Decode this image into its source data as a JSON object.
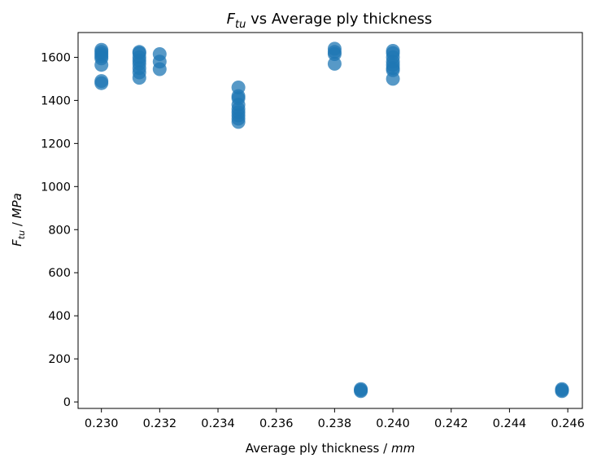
{
  "chart_data": {
    "type": "scatter",
    "title": {
      "var": "F",
      "sub": "tu",
      "rest": " vs Average ply thickness"
    },
    "xlabel": {
      "text": "Average ply thickness / ",
      "unit": "mm"
    },
    "ylabel": {
      "var": "F",
      "sub": "tu",
      "rest": " / ",
      "unit": "MPa"
    },
    "xlim": [
      0.2292,
      0.2465
    ],
    "ylim": [
      -30,
      1715
    ],
    "xticks": [
      0.23,
      0.232,
      0.234,
      0.236,
      0.238,
      0.24,
      0.242,
      0.244,
      0.246
    ],
    "xtick_labels": [
      "0.230",
      "0.232",
      "0.234",
      "0.236",
      "0.238",
      "0.240",
      "0.242",
      "0.244",
      "0.246"
    ],
    "yticks": [
      0,
      200,
      400,
      600,
      800,
      1000,
      1200,
      1400,
      1600
    ],
    "ytick_labels": [
      "0",
      "200",
      "400",
      "600",
      "800",
      "1000",
      "1200",
      "1400",
      "1600"
    ],
    "grid": false,
    "color": "#1f77b4",
    "points": [
      {
        "x": 0.23,
        "y": 1635
      },
      {
        "x": 0.23,
        "y": 1625
      },
      {
        "x": 0.23,
        "y": 1615
      },
      {
        "x": 0.23,
        "y": 1605
      },
      {
        "x": 0.23,
        "y": 1595
      },
      {
        "x": 0.23,
        "y": 1565
      },
      {
        "x": 0.23,
        "y": 1490
      },
      {
        "x": 0.23,
        "y": 1480
      },
      {
        "x": 0.2313,
        "y": 1625
      },
      {
        "x": 0.2313,
        "y": 1620
      },
      {
        "x": 0.2313,
        "y": 1600
      },
      {
        "x": 0.2313,
        "y": 1585
      },
      {
        "x": 0.2313,
        "y": 1570
      },
      {
        "x": 0.2313,
        "y": 1550
      },
      {
        "x": 0.2313,
        "y": 1530
      },
      {
        "x": 0.2313,
        "y": 1505
      },
      {
        "x": 0.232,
        "y": 1615
      },
      {
        "x": 0.232,
        "y": 1580
      },
      {
        "x": 0.232,
        "y": 1545
      },
      {
        "x": 0.2347,
        "y": 1460
      },
      {
        "x": 0.2347,
        "y": 1420
      },
      {
        "x": 0.2347,
        "y": 1410
      },
      {
        "x": 0.2347,
        "y": 1380
      },
      {
        "x": 0.2347,
        "y": 1360
      },
      {
        "x": 0.2347,
        "y": 1345
      },
      {
        "x": 0.2347,
        "y": 1330
      },
      {
        "x": 0.2347,
        "y": 1315
      },
      {
        "x": 0.2347,
        "y": 1300
      },
      {
        "x": 0.238,
        "y": 1640
      },
      {
        "x": 0.238,
        "y": 1625
      },
      {
        "x": 0.238,
        "y": 1615
      },
      {
        "x": 0.238,
        "y": 1570
      },
      {
        "x": 0.2389,
        "y": 60
      },
      {
        "x": 0.2389,
        "y": 55
      },
      {
        "x": 0.2389,
        "y": 50
      },
      {
        "x": 0.24,
        "y": 1630
      },
      {
        "x": 0.24,
        "y": 1620
      },
      {
        "x": 0.24,
        "y": 1600
      },
      {
        "x": 0.24,
        "y": 1580
      },
      {
        "x": 0.24,
        "y": 1565
      },
      {
        "x": 0.24,
        "y": 1550
      },
      {
        "x": 0.24,
        "y": 1540
      },
      {
        "x": 0.24,
        "y": 1500
      },
      {
        "x": 0.2458,
        "y": 60
      },
      {
        "x": 0.2458,
        "y": 55
      },
      {
        "x": 0.2458,
        "y": 50
      }
    ]
  }
}
